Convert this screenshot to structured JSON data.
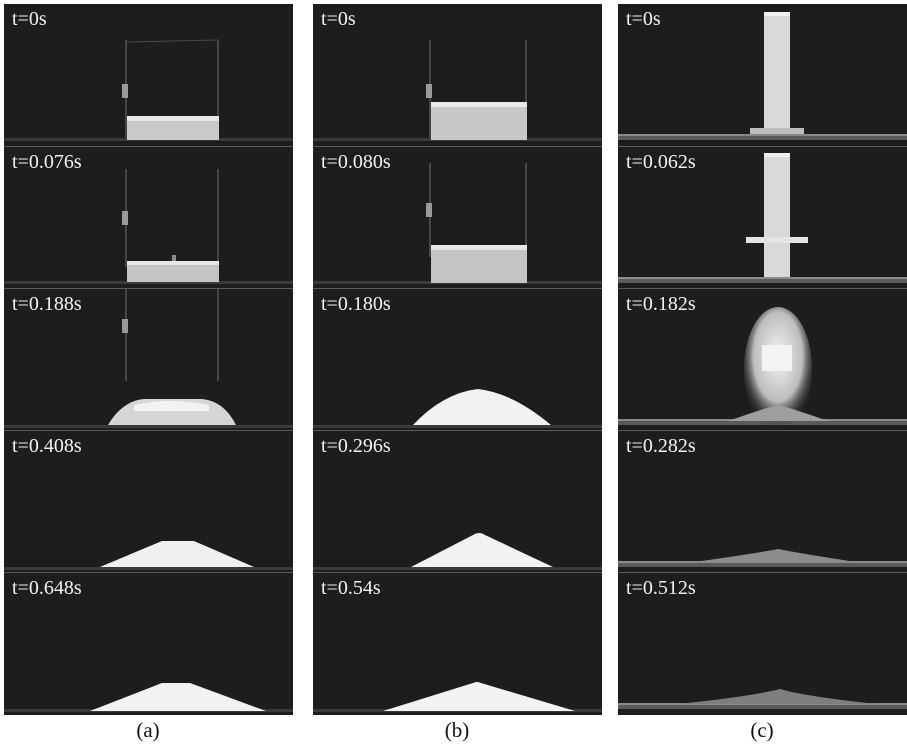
{
  "panels": [
    {
      "caption": "(a)",
      "frames": [
        {
          "time": "t=0s"
        },
        {
          "time": "t=0.076s"
        },
        {
          "time": "t=0.188s"
        },
        {
          "time": "t=0.408s"
        },
        {
          "time": "t=0.648s"
        }
      ]
    },
    {
      "caption": "(b)",
      "frames": [
        {
          "time": "t=0s"
        },
        {
          "time": "t=0.080s"
        },
        {
          "time": "t=0.180s"
        },
        {
          "time": "t=0.296s"
        },
        {
          "time": "t=0.54s"
        }
      ]
    },
    {
      "caption": "(c)",
      "frames": [
        {
          "time": "t=0s"
        },
        {
          "time": "t=0.062s"
        },
        {
          "time": "t=0.182s"
        },
        {
          "time": "t=0.282s"
        },
        {
          "time": "t=0.512s"
        }
      ]
    }
  ]
}
